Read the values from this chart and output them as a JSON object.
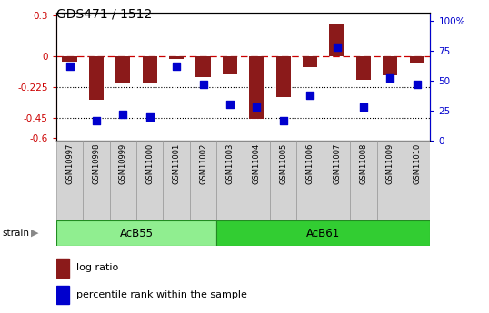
{
  "title": "GDS471 / 1512",
  "samples": [
    "GSM10997",
    "GSM10998",
    "GSM10999",
    "GSM11000",
    "GSM11001",
    "GSM11002",
    "GSM11003",
    "GSM11004",
    "GSM11005",
    "GSM11006",
    "GSM11007",
    "GSM11008",
    "GSM11009",
    "GSM11010"
  ],
  "log_ratio": [
    -0.04,
    -0.32,
    -0.2,
    -0.2,
    -0.02,
    -0.15,
    -0.13,
    -0.46,
    -0.3,
    -0.08,
    0.23,
    -0.17,
    -0.14,
    -0.05
  ],
  "percentile_rank": [
    62,
    17,
    22,
    20,
    62,
    47,
    30,
    28,
    17,
    38,
    78,
    28,
    52,
    47
  ],
  "group1_label": "AcB55",
  "group1_range": [
    0,
    5
  ],
  "group2_label": "AcB61",
  "group2_range": [
    6,
    13
  ],
  "ylim_left": [
    -0.62,
    0.32
  ],
  "ylim_right": [
    0,
    106.67
  ],
  "yticks_left": [
    0.3,
    0.0,
    -0.225,
    -0.45,
    -0.6
  ],
  "yticks_right": [
    100,
    75,
    50,
    25,
    0
  ],
  "hline_dotted1": -0.225,
  "hline_dotted2": -0.45,
  "bar_color": "#8B1A1A",
  "dot_color": "#0000CD",
  "group1_color": "#90EE90",
  "group2_color": "#32CD32",
  "left_axis_color": "#CC0000",
  "right_axis_color": "#0000CD",
  "bar_width": 0.55,
  "dot_size": 28,
  "legend_labels": [
    "log ratio",
    "percentile rank within the sample"
  ],
  "fig_width": 5.38,
  "fig_height": 3.45,
  "dpi": 100
}
